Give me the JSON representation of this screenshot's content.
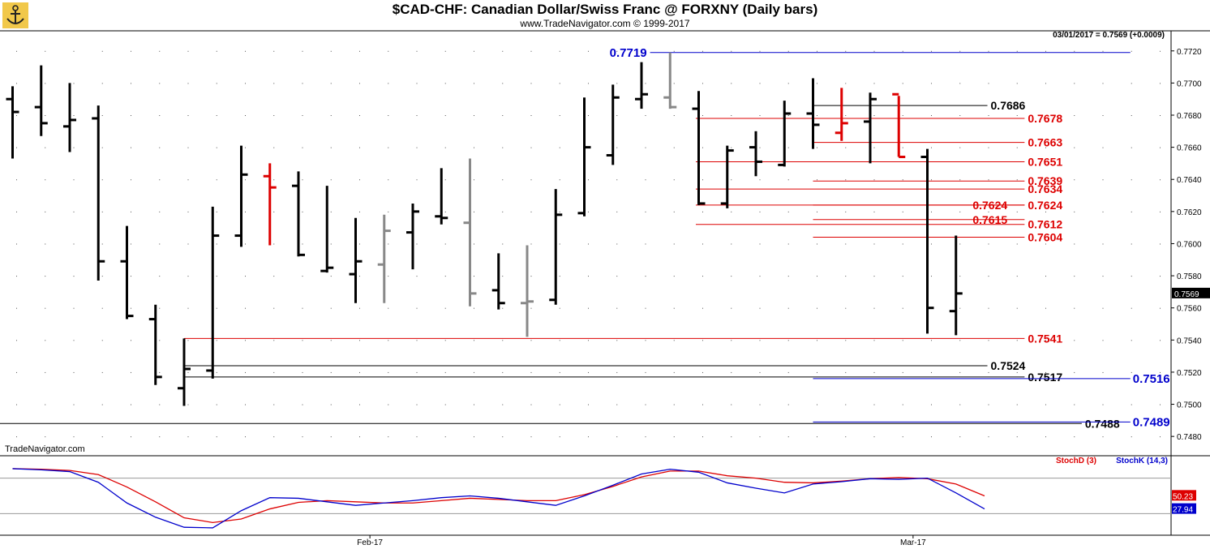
{
  "header": {
    "title": "$CAD-CHF:  Canadian Dollar/Swiss Franc @ FORXNY  (Daily bars)",
    "subtitle": "www.TradeNavigator.com © 1999-2017"
  },
  "watermark": "TradeNavigator.com",
  "info_line": "03/01/2017 = 0.7569 (+0.0009)",
  "last_price_label": "0.7569",
  "colors": {
    "up": "#000000",
    "down": "#000000",
    "red": "#dd0000",
    "blue": "#0000cc",
    "gray": "#888888"
  },
  "chart_data": [
    {
      "type": "ohlc",
      "title": "$CAD-CHF:  Canadian Dollar/Swiss Franc @ FORXNY  (Daily bars)",
      "y_ticks": [
        "0.7720",
        "0.7700",
        "0.7680",
        "0.7660",
        "0.7640",
        "0.7620",
        "0.7600",
        "0.7580",
        "0.7560",
        "0.7540",
        "0.7520",
        "0.7500",
        "0.7480"
      ],
      "ylim": [
        0.7472,
        0.7732
      ],
      "x_tick_labels": [
        {
          "label": "Feb-17",
          "bar": 12.5
        },
        {
          "label": "Mar-17",
          "bar": 31.5
        }
      ],
      "bars": [
        {
          "o": 0.769,
          "h": 0.7698,
          "l": 0.7653,
          "c": 0.7682,
          "color": "black"
        },
        {
          "o": 0.7685,
          "h": 0.7711,
          "l": 0.7667,
          "c": 0.7675,
          "color": "black"
        },
        {
          "o": 0.7673,
          "h": 0.77,
          "l": 0.7657,
          "c": 0.7677,
          "color": "black"
        },
        {
          "o": 0.7678,
          "h": 0.7686,
          "l": 0.7577,
          "c": 0.7589,
          "color": "black"
        },
        {
          "o": 0.7589,
          "h": 0.7611,
          "l": 0.7553,
          "c": 0.7555,
          "color": "black"
        },
        {
          "o": 0.7553,
          "h": 0.7562,
          "l": 0.7512,
          "c": 0.7517,
          "color": "black"
        },
        {
          "o": 0.751,
          "h": 0.7541,
          "l": 0.7499,
          "c": 0.7522,
          "color": "black"
        },
        {
          "o": 0.7521,
          "h": 0.7623,
          "l": 0.7516,
          "c": 0.7605,
          "color": "black"
        },
        {
          "o": 0.7605,
          "h": 0.7661,
          "l": 0.7598,
          "c": 0.7643,
          "color": "black"
        },
        {
          "o": 0.7642,
          "h": 0.765,
          "l": 0.7599,
          "c": 0.7635,
          "color": "red"
        },
        {
          "o": 0.7636,
          "h": 0.7645,
          "l": 0.7592,
          "c": 0.7593,
          "color": "black"
        },
        {
          "o": 0.7583,
          "h": 0.7636,
          "l": 0.7582,
          "c": 0.7585,
          "color": "black"
        },
        {
          "o": 0.7581,
          "h": 0.7616,
          "l": 0.7563,
          "c": 0.7589,
          "color": "black"
        },
        {
          "o": 0.7587,
          "h": 0.7618,
          "l": 0.7563,
          "c": 0.7608,
          "color": "gray"
        },
        {
          "o": 0.7607,
          "h": 0.7625,
          "l": 0.7584,
          "c": 0.762,
          "color": "black"
        },
        {
          "o": 0.7617,
          "h": 0.7647,
          "l": 0.7612,
          "c": 0.7616,
          "color": "black"
        },
        {
          "o": 0.7613,
          "h": 0.7653,
          "l": 0.7561,
          "c": 0.7569,
          "color": "gray"
        },
        {
          "o": 0.7571,
          "h": 0.7594,
          "l": 0.7559,
          "c": 0.7563,
          "color": "black"
        },
        {
          "o": 0.7563,
          "h": 0.7599,
          "l": 0.7542,
          "c": 0.7564,
          "color": "gray"
        },
        {
          "o": 0.7565,
          "h": 0.7634,
          "l": 0.7562,
          "c": 0.7618,
          "color": "black"
        },
        {
          "o": 0.7619,
          "h": 0.7691,
          "l": 0.7617,
          "c": 0.766,
          "color": "black"
        },
        {
          "o": 0.7655,
          "h": 0.7699,
          "l": 0.7649,
          "c": 0.7691,
          "color": "black"
        },
        {
          "o": 0.769,
          "h": 0.7713,
          "l": 0.7684,
          "c": 0.7693,
          "color": "black"
        },
        {
          "o": 0.7691,
          "h": 0.7719,
          "l": 0.7684,
          "c": 0.7685,
          "color": "gray"
        },
        {
          "o": 0.7684,
          "h": 0.7695,
          "l": 0.7624,
          "c": 0.7625,
          "color": "black"
        },
        {
          "o": 0.7625,
          "h": 0.7661,
          "l": 0.7622,
          "c": 0.7658,
          "color": "black"
        },
        {
          "o": 0.766,
          "h": 0.767,
          "l": 0.7642,
          "c": 0.7651,
          "color": "black"
        },
        {
          "o": 0.7649,
          "h": 0.7689,
          "l": 0.7648,
          "c": 0.7681,
          "color": "black"
        },
        {
          "o": 0.7681,
          "h": 0.7703,
          "l": 0.7659,
          "c": 0.7674,
          "color": "black"
        },
        {
          "o": 0.7669,
          "h": 0.7697,
          "l": 0.7664,
          "c": 0.7675,
          "color": "red"
        },
        {
          "o": 0.7676,
          "h": 0.7694,
          "l": 0.765,
          "c": 0.769,
          "color": "black"
        },
        {
          "o": 0.7693,
          "h": 0.7692,
          "l": 0.7654,
          "c": 0.7654,
          "color": "red"
        },
        {
          "o": 0.7654,
          "h": 0.7659,
          "l": 0.7544,
          "c": 0.756,
          "color": "black"
        },
        {
          "o": 0.7558,
          "h": 0.7605,
          "l": 0.7543,
          "c": 0.7569,
          "color": "black"
        }
      ],
      "levels": [
        {
          "value": 0.7719,
          "label": "0.7719",
          "color": "blue",
          "from": 22.3,
          "to": 39.1,
          "label_side": "left"
        },
        {
          "value": 0.7686,
          "label": "0.7686",
          "color": "black",
          "from": 28.0,
          "to": 34.1,
          "label_side": "right"
        },
        {
          "value": 0.7678,
          "label": "0.7678",
          "color": "red",
          "from": 23.9,
          "to": 35.4,
          "label_side": "right"
        },
        {
          "value": 0.7663,
          "label": "0.7663",
          "color": "red",
          "from": 28.0,
          "to": 35.4,
          "label_side": "right"
        },
        {
          "value": 0.7651,
          "label": "0.7651",
          "color": "red",
          "from": 23.9,
          "to": 35.4,
          "label_side": "right"
        },
        {
          "value": 0.7639,
          "label": "0.7639",
          "color": "red",
          "from": 28.0,
          "to": 35.4,
          "label_side": "right"
        },
        {
          "value": 0.7634,
          "label": "0.7634",
          "color": "red",
          "from": 23.9,
          "to": 35.4,
          "label_side": "right"
        },
        {
          "value": 0.7624,
          "label": "0.7624",
          "color": "red",
          "from": 28.0,
          "to": 35.4,
          "label_side": "right_near"
        },
        {
          "value": 0.7624,
          "label": "0.7624",
          "color": "red",
          "from": 23.9,
          "to": 35.4,
          "label_side": "right"
        },
        {
          "value": 0.7615,
          "label": "0.7615",
          "color": "red",
          "from": 28.0,
          "to": 35.4,
          "label_side": "right_near"
        },
        {
          "value": 0.7612,
          "label": "0.7612",
          "color": "red",
          "from": 23.9,
          "to": 35.4,
          "label_side": "right"
        },
        {
          "value": 0.7604,
          "label": "0.7604",
          "color": "red",
          "from": 28.0,
          "to": 35.4,
          "label_side": "right"
        },
        {
          "value": 0.7541,
          "label": "0.7541",
          "color": "red",
          "from": 6.0,
          "to": 35.4,
          "label_side": "right"
        },
        {
          "value": 0.7524,
          "label": "0.7524",
          "color": "black",
          "from": 6.0,
          "to": 34.1,
          "label_side": "right"
        },
        {
          "value": 0.7517,
          "label": "0.7517",
          "color": "black",
          "from": 6.0,
          "to": 35.4,
          "label_side": "right"
        },
        {
          "value": 0.7516,
          "label": "0.7516",
          "color": "blue",
          "from": 28.0,
          "to": 39.1,
          "label_side": "far_right"
        },
        {
          "value": 0.7488,
          "label": "0.7488",
          "color": "black",
          "from": -1.0,
          "to": 37.4,
          "label_side": "right"
        },
        {
          "value": 0.7489,
          "label": "0.7489",
          "color": "blue",
          "from": 28.0,
          "to": 39.1,
          "label_side": "far_right"
        }
      ]
    },
    {
      "type": "line",
      "ylim": [
        0,
        100
      ],
      "series": [
        {
          "name": "StochD (3)",
          "color": "red",
          "values": [
            96,
            95,
            93,
            86,
            65,
            40,
            13,
            5,
            11,
            28,
            39,
            42,
            40,
            38,
            38,
            42,
            46,
            44,
            42,
            42,
            52,
            66,
            82,
            92,
            92,
            84,
            80,
            73,
            72,
            75,
            79,
            81,
            79,
            70,
            50
          ]
        },
        {
          "name": "StochK (14,3)",
          "color": "blue",
          "values": [
            96,
            94,
            91,
            73,
            38,
            14,
            -3,
            -4,
            25,
            47,
            46,
            40,
            34,
            38,
            42,
            47,
            50,
            46,
            40,
            34,
            50,
            68,
            87,
            95,
            90,
            72,
            63,
            55,
            70,
            74,
            79,
            78,
            80,
            55,
            27.94
          ]
        }
      ],
      "value_labels": [
        "50.23",
        "27.94"
      ]
    }
  ]
}
